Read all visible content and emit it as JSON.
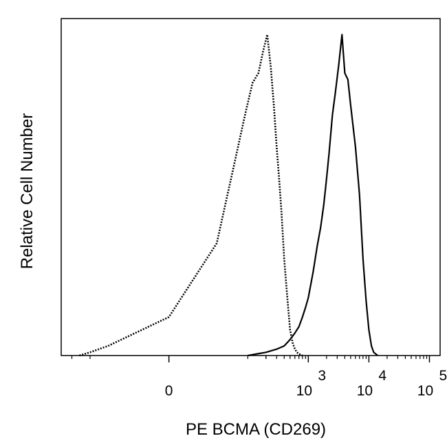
{
  "chart_data": {
    "type": "line",
    "title": "",
    "xlabel": "PE BCMA (CD269)",
    "ylabel": "Relative Cell Number",
    "x_scale": "biexponential",
    "xlim": [
      -300,
      150000
    ],
    "ylim": [
      0,
      1.05
    ],
    "x_ticks": [
      {
        "value": 0,
        "label": "0",
        "exp": ""
      },
      {
        "value": 1000,
        "label": "10",
        "exp": "3"
      },
      {
        "value": 10000,
        "label": "10",
        "exp": "4"
      },
      {
        "value": 100000,
        "label": "10",
        "exp": "5"
      }
    ],
    "series": [
      {
        "style": "dotted",
        "x": [
          -150,
          -100,
          -50,
          0,
          30,
          60,
          90,
          120,
          150,
          180,
          210,
          240,
          270,
          300,
          330,
          360,
          400,
          450,
          500,
          550,
          600,
          650,
          700,
          800
        ],
        "y": [
          0.0,
          0.01,
          0.03,
          0.12,
          0.35,
          0.6,
          0.75,
          0.85,
          0.88,
          0.95,
          1.0,
          0.9,
          0.78,
          0.65,
          0.55,
          0.45,
          0.3,
          0.18,
          0.08,
          0.04,
          0.02,
          0.01,
          0.005,
          0.0
        ]
      },
      {
        "style": "solid",
        "x": [
          100,
          200,
          300,
          400,
          500,
          600,
          700,
          800,
          900,
          1000,
          1200,
          1400,
          1600,
          1800,
          2000,
          2200,
          2500,
          2800,
          3200,
          3600,
          4000,
          4500,
          5000,
          6000,
          7000,
          8000,
          9000,
          10000,
          11000,
          12000,
          14000
        ],
        "y": [
          0.0,
          0.01,
          0.02,
          0.03,
          0.05,
          0.07,
          0.09,
          0.12,
          0.15,
          0.18,
          0.26,
          0.34,
          0.4,
          0.47,
          0.55,
          0.63,
          0.75,
          0.82,
          0.91,
          1.0,
          0.88,
          0.86,
          0.78,
          0.65,
          0.5,
          0.3,
          0.17,
          0.08,
          0.03,
          0.01,
          0.0
        ]
      }
    ],
    "grid": false,
    "legend": "none"
  }
}
